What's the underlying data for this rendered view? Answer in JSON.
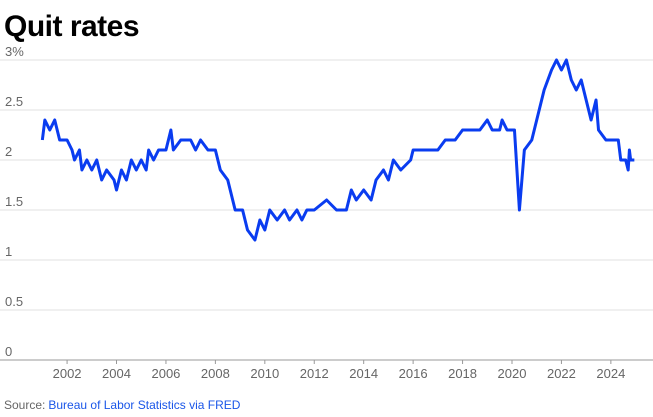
{
  "chart_data": {
    "type": "line",
    "title": "Quit rates",
    "source": {
      "label": "Source:",
      "text": "Bureau of Labor Statistics via FRED"
    },
    "x": [
      2001.0,
      2001.1,
      2001.3,
      2001.5,
      2001.7,
      2002.0,
      2002.2,
      2002.3,
      2002.5,
      2002.6,
      2002.8,
      2003.0,
      2003.2,
      2003.4,
      2003.6,
      2003.9,
      2004.0,
      2004.2,
      2004.4,
      2004.6,
      2004.8,
      2005.0,
      2005.2,
      2005.3,
      2005.5,
      2005.7,
      2006.0,
      2006.2,
      2006.3,
      2006.6,
      2007.0,
      2007.2,
      2007.4,
      2007.7,
      2008.0,
      2008.2,
      2008.5,
      2008.8,
      2009.1,
      2009.3,
      2009.6,
      2009.8,
      2010.0,
      2010.2,
      2010.5,
      2010.8,
      2011.0,
      2011.3,
      2011.5,
      2011.7,
      2012.0,
      2012.5,
      2012.9,
      2013.3,
      2013.5,
      2013.7,
      2014.0,
      2014.3,
      2014.5,
      2014.8,
      2015.0,
      2015.2,
      2015.5,
      2015.9,
      2016.0,
      2016.5,
      2017.0,
      2017.3,
      2017.7,
      2018.0,
      2018.7,
      2019.0,
      2019.2,
      2019.5,
      2019.6,
      2019.8,
      2020.1,
      2020.3,
      2020.5,
      2020.8,
      2021.0,
      2021.3,
      2021.6,
      2021.8,
      2022.0,
      2022.2,
      2022.4,
      2022.6,
      2022.8,
      2023.0,
      2023.2,
      2023.4,
      2023.5,
      2023.8,
      2024.3,
      2024.4,
      2024.6,
      2024.7,
      2024.75,
      2024.8,
      2024.95
    ],
    "series": [
      {
        "color": "#0a3cf0",
        "values": [
          2.2,
          2.4,
          2.3,
          2.4,
          2.2,
          2.2,
          2.1,
          2.0,
          2.1,
          1.9,
          2.0,
          1.9,
          2.0,
          1.8,
          1.9,
          1.8,
          1.7,
          1.9,
          1.8,
          2.0,
          1.9,
          2.0,
          1.9,
          2.1,
          2.0,
          2.1,
          2.1,
          2.3,
          2.1,
          2.2,
          2.2,
          2.1,
          2.2,
          2.1,
          2.1,
          1.9,
          1.8,
          1.5,
          1.5,
          1.3,
          1.2,
          1.4,
          1.3,
          1.5,
          1.4,
          1.5,
          1.4,
          1.5,
          1.4,
          1.5,
          1.5,
          1.6,
          1.5,
          1.5,
          1.7,
          1.6,
          1.7,
          1.6,
          1.8,
          1.9,
          1.8,
          2.0,
          1.9,
          2.0,
          2.1,
          2.1,
          2.1,
          2.2,
          2.2,
          2.3,
          2.3,
          2.4,
          2.3,
          2.3,
          2.4,
          2.3,
          2.3,
          1.5,
          2.1,
          2.2,
          2.4,
          2.7,
          2.9,
          3.0,
          2.9,
          3.0,
          2.8,
          2.7,
          2.8,
          2.6,
          2.4,
          2.6,
          2.3,
          2.2,
          2.2,
          2.0,
          2.0,
          1.9,
          2.1,
          2.0,
          2.0
        ]
      }
    ],
    "xlim": [
      2000.5,
      2025.3
    ],
    "xticks": [
      2002,
      2004,
      2006,
      2008,
      2010,
      2012,
      2014,
      2016,
      2018,
      2020,
      2022,
      2024
    ],
    "ylim": [
      0,
      3
    ],
    "yticks": [
      0,
      0.5,
      1,
      1.5,
      2,
      2.5,
      {
        "value": 3,
        "label": "3%"
      }
    ],
    "grid": true
  }
}
